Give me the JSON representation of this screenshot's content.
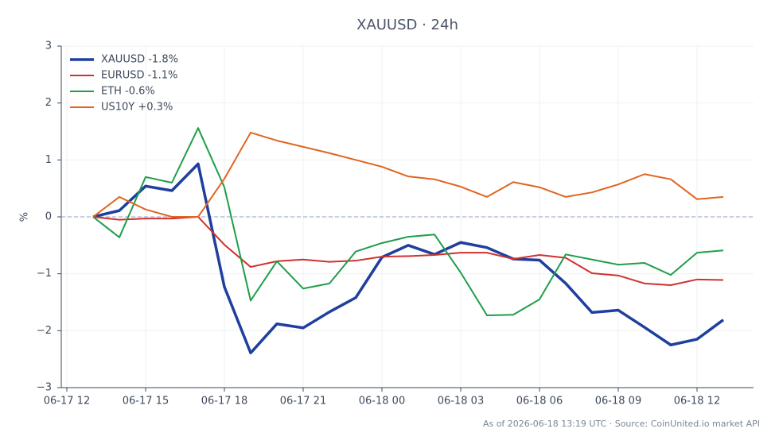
{
  "chart_data": {
    "type": "line",
    "title": "XAUUSD · 24h",
    "y_label": "%",
    "footer": "As of 2026-06-18 13:19 UTC · Source: CoinUnited.io market API",
    "x": [
      "06-17 13",
      "06-17 14",
      "06-17 15",
      "06-17 16",
      "06-17 17",
      "06-17 18",
      "06-17 19",
      "06-17 20",
      "06-17 21",
      "06-17 22",
      "06-17 23",
      "06-18 00",
      "06-18 01",
      "06-18 02",
      "06-18 03",
      "06-18 04",
      "06-18 05",
      "06-18 06",
      "06-18 07",
      "06-18 08",
      "06-18 09",
      "06-18 10",
      "06-18 11",
      "06-18 12",
      "06-18 13"
    ],
    "xlim": [
      "06-17 12",
      "06-18 14"
    ],
    "xticks": [
      "06-17 12",
      "06-17 15",
      "06-17 18",
      "06-17 21",
      "06-18 00",
      "06-18 03",
      "06-18 06",
      "06-18 09",
      "06-18 12"
    ],
    "ylim": [
      -3,
      3
    ],
    "yticks": [
      {
        "value": -3,
        "label": "−3"
      },
      {
        "value": -2,
        "label": "−2"
      },
      {
        "value": -1,
        "label": "−1"
      },
      0,
      1,
      2,
      3
    ],
    "grid": true,
    "legend": "upper left",
    "series": [
      {
        "name": "XAUUSD -1.8%",
        "color": "#1f3f9e",
        "width": 3.5,
        "values": [
          0,
          0.11,
          0.54,
          0.46,
          0.93,
          -1.23,
          -2.39,
          -1.88,
          -1.95,
          -1.67,
          -1.42,
          -0.71,
          -0.5,
          -0.66,
          -0.45,
          -0.54,
          -0.74,
          -0.76,
          -1.17,
          -1.68,
          -1.64,
          -1.94,
          -2.25,
          -2.15,
          -1.81
        ]
      },
      {
        "name": "EURUSD -1.1%",
        "color": "#d0312d",
        "width": 2,
        "values": [
          0,
          -0.05,
          -0.03,
          -0.03,
          0,
          -0.49,
          -0.88,
          -0.78,
          -0.75,
          -0.79,
          -0.77,
          -0.7,
          -0.69,
          -0.67,
          -0.63,
          -0.63,
          -0.74,
          -0.67,
          -0.72,
          -0.99,
          -1.03,
          -1.17,
          -1.2,
          -1.1,
          -1.11
        ]
      },
      {
        "name": "ETH -0.6%",
        "color": "#1e9e4a",
        "width": 2,
        "values": [
          0,
          -0.36,
          0.7,
          0.6,
          1.56,
          0.52,
          -1.47,
          -0.78,
          -1.26,
          -1.17,
          -0.61,
          -0.46,
          -0.35,
          -0.31,
          -0.98,
          -1.73,
          -1.72,
          -1.45,
          -0.66,
          -0.75,
          -0.84,
          -0.81,
          -1.02,
          -0.63,
          -0.59
        ]
      },
      {
        "name": "US10Y +0.3%",
        "color": "#e0651f",
        "width": 2,
        "values": [
          0,
          0.35,
          0.13,
          0,
          0,
          0.67,
          1.48,
          1.34,
          1.23,
          1.12,
          1,
          0.88,
          0.71,
          0.66,
          0.53,
          0.35,
          0.61,
          0.52,
          0.35,
          0.43,
          0.57,
          0.75,
          0.66,
          0.31,
          0.35
        ]
      }
    ]
  }
}
